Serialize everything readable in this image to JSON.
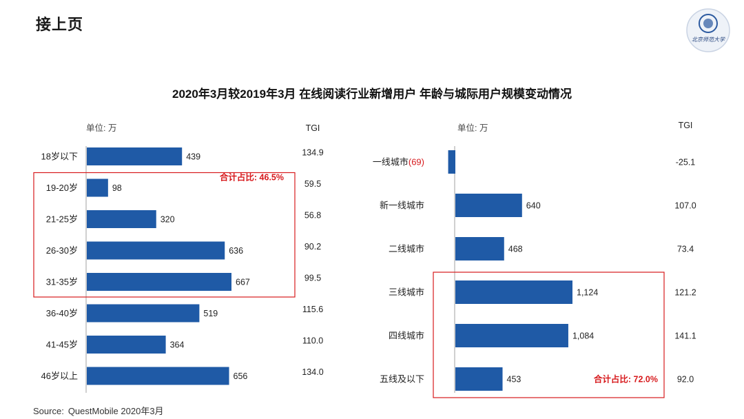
{
  "page_title": "接上页",
  "logo_text": "北京师范大学",
  "source": {
    "label": "Source:",
    "text": "QuestMobile 2020年3月"
  },
  "colors": {
    "bar": "#1f5aa6",
    "highlight": "#d7191c",
    "axis": "#d0d0d0"
  },
  "chart_data": [
    {
      "type": "bar",
      "orientation": "horizontal",
      "title": "2020年3月较2019年3月 在线阅读行业新增用户 年龄与城际用户规模变动情况",
      "unit_label": "单位: 万",
      "tgi_header": "TGI",
      "categories": [
        "18岁以下",
        "19-20岁",
        "21-25岁",
        "26-30岁",
        "31-35岁",
        "36-40岁",
        "41-45岁",
        "46岁以上"
      ],
      "values": [
        439,
        98,
        320,
        636,
        667,
        519,
        364,
        656
      ],
      "value_labels": [
        "439",
        "98",
        "320",
        "636",
        "667",
        "519",
        "364",
        "656"
      ],
      "tgi": [
        "134.9",
        "59.5",
        "56.8",
        "90.2",
        "99.5",
        "115.6",
        "110.0",
        "134.0"
      ],
      "highlight": {
        "from": 1,
        "to": 4,
        "label": "合计占比: 46.5%"
      }
    },
    {
      "type": "bar",
      "orientation": "horizontal",
      "unit_label": "单位: 万",
      "tgi_header": "TGI",
      "categories": [
        "一线城市",
        "新一线城市",
        "二线城市",
        "三线城市",
        "四线城市",
        "五线及以下"
      ],
      "category_suffix": [
        "(69)",
        "",
        "",
        "",
        "",
        ""
      ],
      "values": [
        -69,
        640,
        468,
        1124,
        1084,
        453
      ],
      "value_labels": [
        "",
        "640",
        "468",
        "1,124",
        "1,084",
        "453"
      ],
      "tgi": [
        "-25.1",
        "107.0",
        "73.4",
        "121.2",
        "141.1",
        "92.0"
      ],
      "highlight": {
        "from": 3,
        "to": 5,
        "label": "合计占比: 72.0%"
      }
    }
  ]
}
